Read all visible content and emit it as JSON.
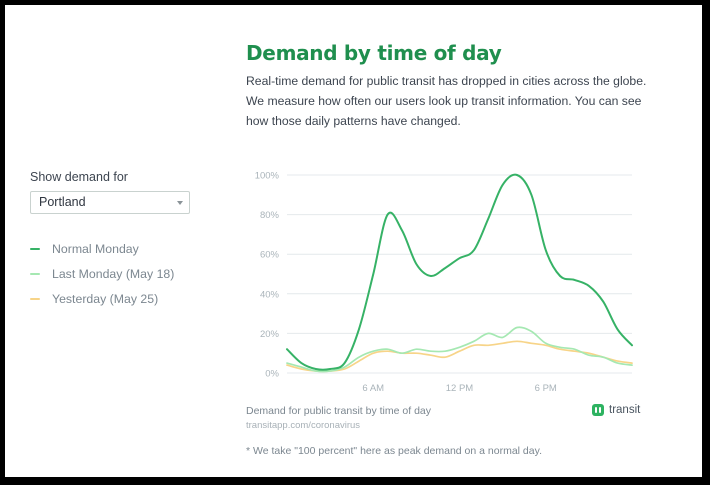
{
  "page": {
    "title": "Demand by time of day",
    "description": [
      "Real-time demand for public transit has dropped in cities across the globe.",
      "We measure how often our users look up transit information. You can see",
      "how those daily patterns have changed."
    ],
    "footnote": "* We take \"100 percent\" here as peak demand on a normal day."
  },
  "controls": {
    "show_label": "Show demand for",
    "city_selected": "Portland"
  },
  "brand": {
    "name": "transit"
  },
  "chart_data": {
    "type": "line",
    "title": "",
    "caption": "Demand for public transit by time of day",
    "source": "transitapp.com/coronavirus",
    "xlabel": "",
    "ylabel": "",
    "xlim": [
      0,
      24
    ],
    "ylim": [
      0,
      100
    ],
    "x_ticks": [
      6,
      12,
      18
    ],
    "x_tick_labels": [
      "6 AM",
      "12 PM",
      "6 PM"
    ],
    "y_ticks": [
      0,
      20,
      40,
      60,
      80,
      100
    ],
    "y_tick_labels": [
      "0%",
      "20%",
      "40%",
      "60%",
      "80%",
      "100%"
    ],
    "grid": "horizontal",
    "legend_position": "left",
    "x": [
      0,
      1,
      2,
      3,
      4,
      5,
      6,
      7,
      8,
      9,
      10,
      11,
      12,
      13,
      14,
      15,
      16,
      17,
      18,
      19,
      20,
      21,
      22,
      23,
      24
    ],
    "series": [
      {
        "name": "Normal Monday",
        "color": "#36b266",
        "values": [
          12,
          5,
          2,
          2,
          5,
          22,
          50,
          80,
          72,
          55,
          49,
          53,
          58,
          62,
          78,
          95,
          100,
          90,
          62,
          49,
          47,
          44,
          36,
          22,
          14
        ]
      },
      {
        "name": "Last Monday (May 18)",
        "color": "#a5e8b2",
        "values": [
          5,
          3,
          1,
          1,
          3,
          8,
          11,
          12,
          10,
          12,
          11,
          11,
          13,
          16,
          20,
          18,
          23,
          21,
          15,
          13,
          12,
          9,
          8,
          5,
          4
        ]
      },
      {
        "name": "Yesterday (May 25)",
        "color": "#f7d488",
        "values": [
          4,
          2,
          1,
          1,
          2,
          6,
          10,
          11,
          10,
          10,
          9,
          8,
          11,
          14,
          14,
          15,
          16,
          15,
          14,
          12,
          11,
          10,
          8,
          6,
          5
        ]
      }
    ]
  }
}
